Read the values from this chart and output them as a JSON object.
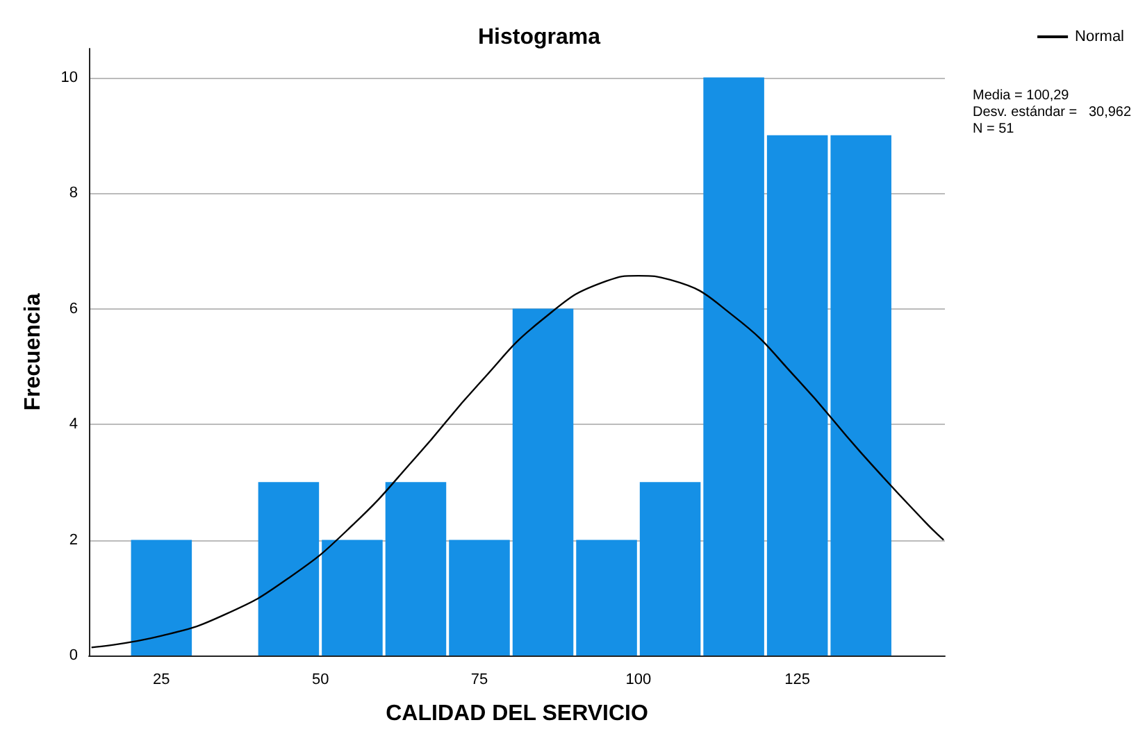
{
  "chart_data": {
    "type": "histogram",
    "title": "Histograma",
    "xlabel": "CALIDAD DEL SERVICIO",
    "ylabel": "Frecuencia",
    "bins": [
      20,
      30,
      40,
      50,
      60,
      70,
      80,
      90,
      100,
      110,
      120,
      130,
      140
    ],
    "values": [
      2,
      0,
      3,
      2,
      3,
      2,
      6,
      2,
      3,
      10,
      9,
      9
    ],
    "color": "#1590e6",
    "series": [
      {
        "name": "Normal",
        "type": "line",
        "color": "#000000",
        "x": [
          14,
          25,
          35,
          45,
          55,
          65,
          75,
          85,
          95,
          100,
          105,
          115,
          125,
          135,
          145,
          148
        ],
        "values": [
          0.14,
          0.34,
          0.71,
          1.34,
          2.25,
          3.43,
          4.71,
          5.82,
          6.48,
          6.57,
          6.5,
          5.87,
          4.78,
          3.51,
          2.32,
          2.0
        ]
      }
    ],
    "annotations": [
      "Media = 100,29",
      "Desv. estándar =   30,962",
      "N = 51"
    ],
    "xlim": [
      13.6,
      148.2
    ],
    "xticks": [
      25,
      50,
      75,
      100,
      125
    ],
    "ylim": [
      0,
      10.5
    ],
    "yticks": [
      0,
      2,
      4,
      6,
      8,
      10
    ],
    "grid": "y",
    "legend": "top right",
    "marker": "none"
  }
}
